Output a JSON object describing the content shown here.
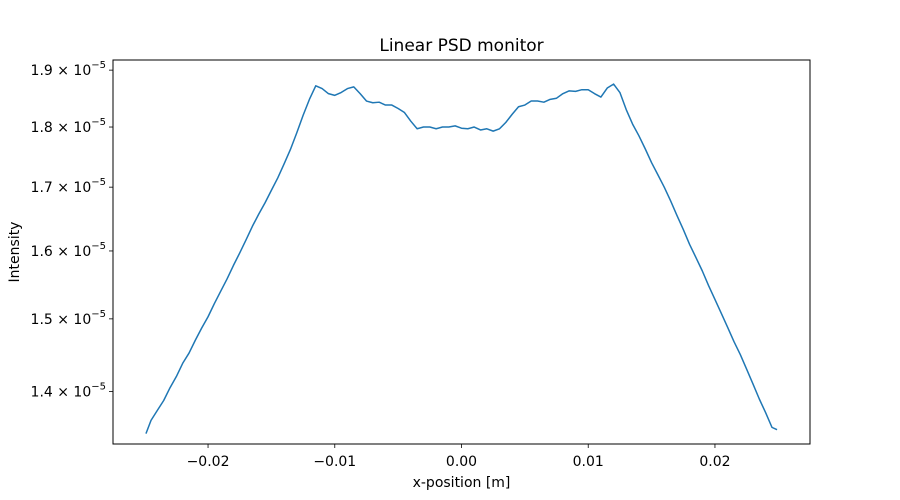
{
  "chart_data": {
    "type": "line",
    "title": "Linear PSD monitor",
    "xlabel": "x-position [m]",
    "ylabel": "Intensity",
    "yscale": "log",
    "xlim": [
      -0.0275,
      0.0275
    ],
    "ylim": [
      1.3318e-05,
      1.9184e-05
    ],
    "grid": false,
    "xticks": [
      {
        "value": -0.02,
        "label": "−0.02"
      },
      {
        "value": -0.01,
        "label": "−0.01"
      },
      {
        "value": 0.0,
        "label": "0.00"
      },
      {
        "value": 0.01,
        "label": "0.01"
      },
      {
        "value": 0.02,
        "label": "0.02"
      }
    ],
    "yticks": [
      {
        "value": 1.4e-05,
        "mantissa": "1.4",
        "base": "10",
        "exponent": "−5"
      },
      {
        "value": 1.5e-05,
        "mantissa": "1.5",
        "base": "10",
        "exponent": "−5"
      },
      {
        "value": 1.6e-05,
        "mantissa": "1.6",
        "base": "10",
        "exponent": "−5"
      },
      {
        "value": 1.7e-05,
        "mantissa": "1.7",
        "base": "10",
        "exponent": "−5"
      },
      {
        "value": 1.8e-05,
        "mantissa": "1.8",
        "base": "10",
        "exponent": "−5"
      },
      {
        "value": 1.9e-05,
        "mantissa": "1.9",
        "base": "10",
        "exponent": "−5"
      }
    ],
    "series": [
      {
        "color": "#1f77b4",
        "x": [
          -0.0249,
          -0.0245,
          -0.024,
          -0.0235,
          -0.023,
          -0.0225,
          -0.022,
          -0.0215,
          -0.021,
          -0.0205,
          -0.02,
          -0.0195,
          -0.019,
          -0.0185,
          -0.018,
          -0.0175,
          -0.017,
          -0.0165,
          -0.016,
          -0.0155,
          -0.015,
          -0.0145,
          -0.014,
          -0.0135,
          -0.013,
          -0.0125,
          -0.012,
          -0.0115,
          -0.011,
          -0.0105,
          -0.01,
          -0.0095,
          -0.009,
          -0.0085,
          -0.008,
          -0.0075,
          -0.007,
          -0.0065,
          -0.006,
          -0.0055,
          -0.005,
          -0.0045,
          -0.004,
          -0.0035,
          -0.003,
          -0.0025,
          -0.002,
          -0.0015,
          -0.001,
          -0.0005,
          0.0,
          0.0005,
          0.001,
          0.0015,
          0.002,
          0.0025,
          0.003,
          0.0035,
          0.004,
          0.0045,
          0.005,
          0.0055,
          0.006,
          0.0065,
          0.007,
          0.0075,
          0.008,
          0.0085,
          0.009,
          0.0095,
          0.01,
          0.0105,
          0.011,
          0.0115,
          0.012,
          0.0125,
          0.013,
          0.0135,
          0.014,
          0.0145,
          0.015,
          0.0155,
          0.016,
          0.0165,
          0.017,
          0.0175,
          0.018,
          0.0185,
          0.019,
          0.0195,
          0.02,
          0.0205,
          0.021,
          0.0215,
          0.022,
          0.0225,
          0.023,
          0.0235,
          0.024,
          0.0245,
          0.0249
        ],
        "y": [
          1.345e-05,
          1.362e-05,
          1.375e-05,
          1.388e-05,
          1.405e-05,
          1.42e-05,
          1.438e-05,
          1.452e-05,
          1.47e-05,
          1.487e-05,
          1.503e-05,
          1.522e-05,
          1.54e-05,
          1.558e-05,
          1.578e-05,
          1.597e-05,
          1.617e-05,
          1.638e-05,
          1.657e-05,
          1.675e-05,
          1.695e-05,
          1.715e-05,
          1.738e-05,
          1.762e-05,
          1.79e-05,
          1.82e-05,
          1.848e-05,
          1.872e-05,
          1.867e-05,
          1.858e-05,
          1.855e-05,
          1.86e-05,
          1.867e-05,
          1.87e-05,
          1.858e-05,
          1.845e-05,
          1.842e-05,
          1.843e-05,
          1.838e-05,
          1.838e-05,
          1.832e-05,
          1.825e-05,
          1.81e-05,
          1.797e-05,
          1.8e-05,
          1.8e-05,
          1.797e-05,
          1.8e-05,
          1.8e-05,
          1.802e-05,
          1.798e-05,
          1.797e-05,
          1.8e-05,
          1.795e-05,
          1.797e-05,
          1.793e-05,
          1.797e-05,
          1.808e-05,
          1.822e-05,
          1.835e-05,
          1.838e-05,
          1.845e-05,
          1.845e-05,
          1.843e-05,
          1.848e-05,
          1.85e-05,
          1.858e-05,
          1.863e-05,
          1.862e-05,
          1.865e-05,
          1.865e-05,
          1.858e-05,
          1.852e-05,
          1.868e-05,
          1.875e-05,
          1.86e-05,
          1.83e-05,
          1.805e-05,
          1.785e-05,
          1.763e-05,
          1.74e-05,
          1.72e-05,
          1.7e-05,
          1.678e-05,
          1.655e-05,
          1.633e-05,
          1.61e-05,
          1.59e-05,
          1.57e-05,
          1.548e-05,
          1.528e-05,
          1.508e-05,
          1.488e-05,
          1.468e-05,
          1.45e-05,
          1.43e-05,
          1.41e-05,
          1.39e-05,
          1.372e-05,
          1.353e-05,
          1.35e-05
        ]
      }
    ]
  }
}
